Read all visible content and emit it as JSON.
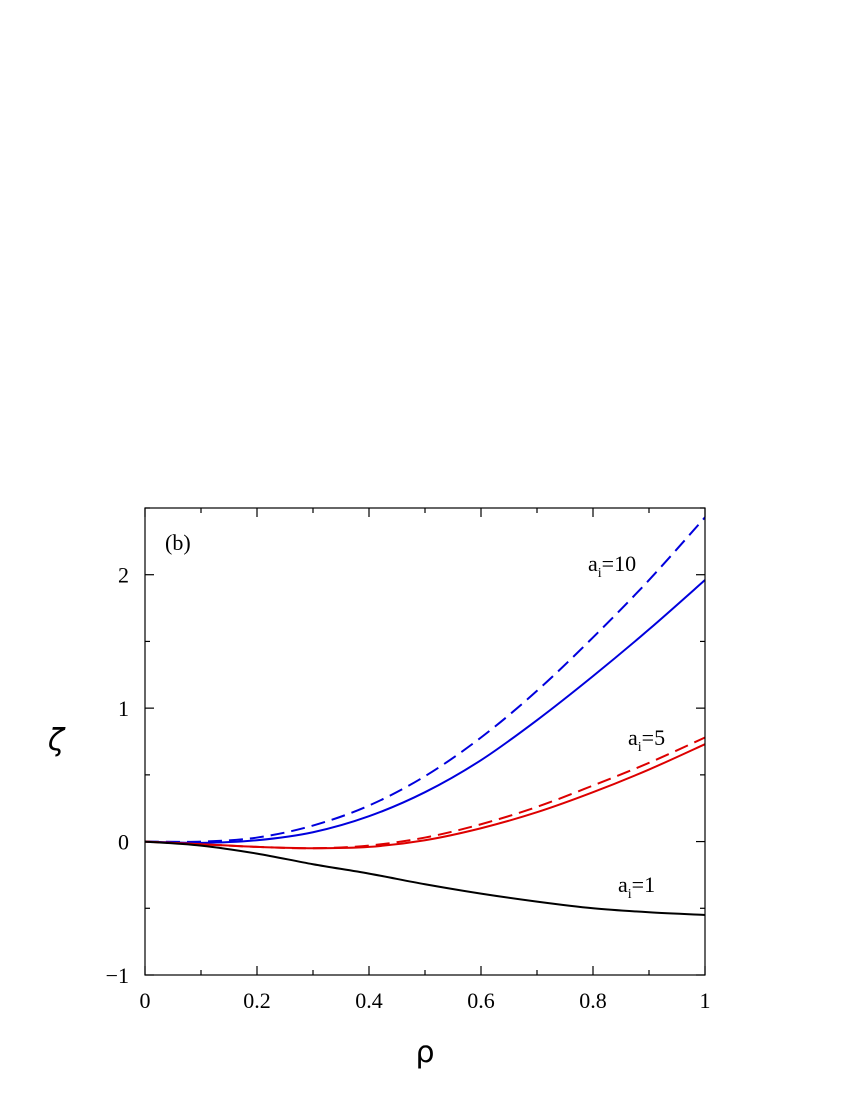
{
  "chart_data": {
    "type": "line",
    "panel_label": "(b)",
    "xlabel": "ρ",
    "ylabel": "ζ",
    "xlim": [
      0,
      1
    ],
    "ylim": [
      -1,
      2.5
    ],
    "x_ticks": [
      "0",
      "0.2",
      "0.4",
      "0.6",
      "0.8",
      "1"
    ],
    "y_ticks": [
      "−1",
      "0",
      "1",
      "2"
    ],
    "annotations": [
      {
        "base": "a",
        "sub": "i",
        "rest": "=10"
      },
      {
        "base": "a",
        "sub": "i",
        "rest": "=5"
      },
      {
        "base": "a",
        "sub": "i",
        "rest": "=1"
      }
    ],
    "series": [
      {
        "group": "a_i=10",
        "style": "dashed",
        "color": "#0000dd",
        "x": [
          0,
          0.1,
          0.2,
          0.3,
          0.4,
          0.5,
          0.6,
          0.7,
          0.8,
          0.9,
          1.0
        ],
        "y": [
          0,
          0.0,
          0.03,
          0.12,
          0.27,
          0.49,
          0.78,
          1.13,
          1.53,
          1.96,
          2.43
        ]
      },
      {
        "group": "a_i=10",
        "style": "solid",
        "color": "#0000dd",
        "x": [
          0,
          0.1,
          0.2,
          0.3,
          0.4,
          0.5,
          0.6,
          0.7,
          0.8,
          0.9,
          1.0
        ],
        "y": [
          0,
          -0.01,
          0.01,
          0.07,
          0.19,
          0.37,
          0.61,
          0.91,
          1.24,
          1.59,
          1.96
        ]
      },
      {
        "group": "a_i=5",
        "style": "dashed",
        "color": "#dd0000",
        "x": [
          0,
          0.1,
          0.2,
          0.3,
          0.4,
          0.5,
          0.6,
          0.7,
          0.8,
          0.9,
          1.0
        ],
        "y": [
          0,
          -0.02,
          -0.04,
          -0.05,
          -0.03,
          0.03,
          0.13,
          0.26,
          0.42,
          0.59,
          0.78
        ]
      },
      {
        "group": "a_i=5",
        "style": "solid",
        "color": "#dd0000",
        "x": [
          0,
          0.1,
          0.2,
          0.3,
          0.4,
          0.5,
          0.6,
          0.7,
          0.8,
          0.9,
          1.0
        ],
        "y": [
          0,
          -0.02,
          -0.04,
          -0.05,
          -0.04,
          0.01,
          0.1,
          0.22,
          0.37,
          0.54,
          0.73
        ]
      },
      {
        "group": "a_i=1",
        "style": "solid",
        "color": "#000000",
        "x": [
          0,
          0.1,
          0.2,
          0.3,
          0.4,
          0.5,
          0.6,
          0.7,
          0.8,
          0.9,
          1.0
        ],
        "y": [
          0,
          -0.03,
          -0.09,
          -0.17,
          -0.24,
          -0.32,
          -0.39,
          -0.45,
          -0.5,
          -0.53,
          -0.55
        ]
      }
    ]
  }
}
